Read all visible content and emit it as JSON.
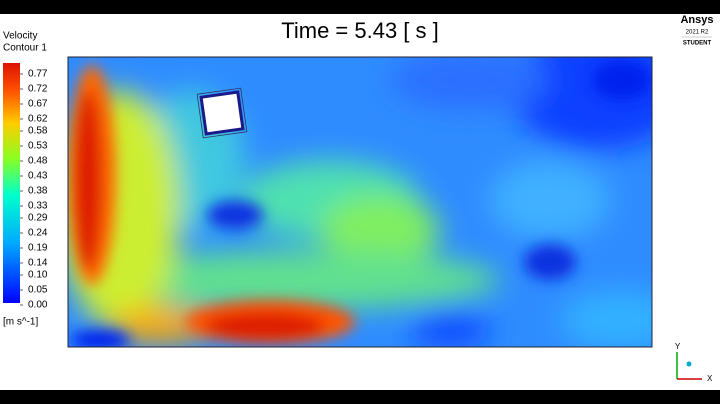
{
  "title": "Time = 5.43 [ s ]",
  "legend": {
    "title": [
      "Velocity",
      "Contour 1"
    ],
    "unit": "[m s^-1]",
    "ticks": [
      0.77,
      0.72,
      0.67,
      0.62,
      0.58,
      0.53,
      0.48,
      0.43,
      0.38,
      0.33,
      0.29,
      0.24,
      0.19,
      0.14,
      {
        "value": 0.1,
        "label": "0.10"
      },
      0.05,
      {
        "value": 0,
        "label": "0.00"
      }
    ]
  },
  "logo": {
    "brand": "Ansys",
    "version": "2021 R2",
    "edition": "STUDENT"
  },
  "axes": {
    "x": "X",
    "y": "Y"
  }
}
